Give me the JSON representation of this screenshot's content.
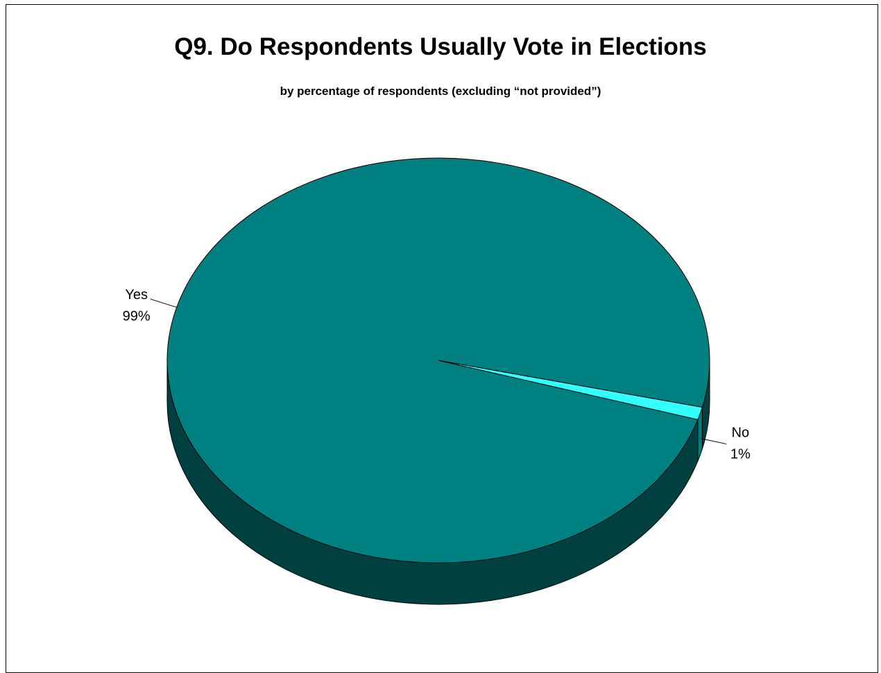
{
  "chart_data": {
    "type": "pie",
    "style": "3d",
    "title": "Q9. Do Respondents Usually Vote in Elections",
    "subtitle": "by percentage of respondents (excluding “not provided”)",
    "slices": [
      {
        "label": "Yes",
        "value": 99,
        "value_label": "99%",
        "color": "#008080",
        "side_color": "#004040"
      },
      {
        "label": "No",
        "value": 1,
        "value_label": "1%",
        "color": "#33ffff",
        "side_color": "#007f7f"
      }
    ]
  }
}
